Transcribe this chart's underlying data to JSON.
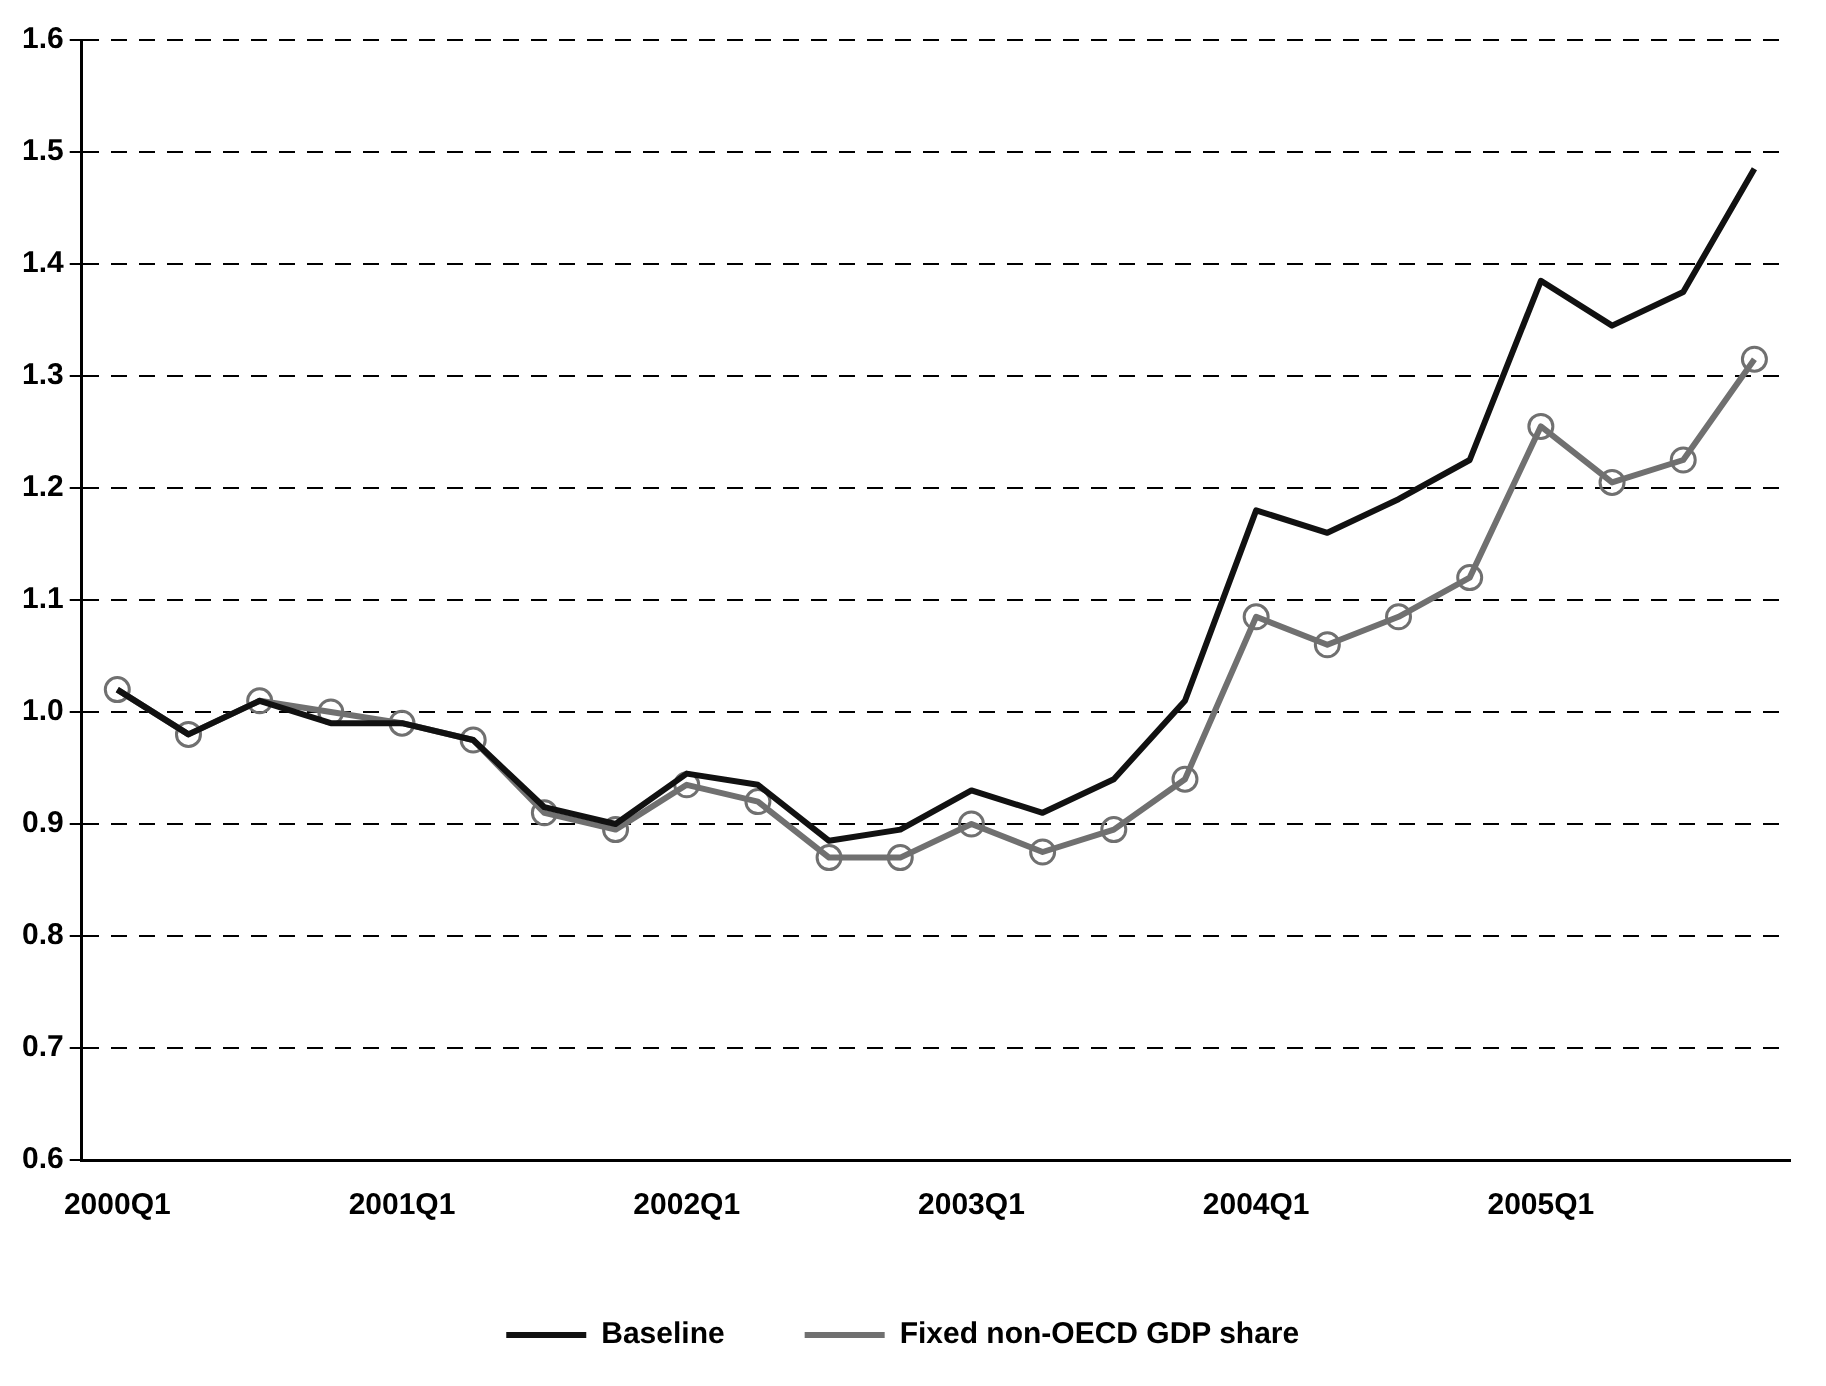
{
  "chart_data": {
    "type": "line",
    "categories": [
      "2000Q1",
      null,
      null,
      null,
      "2001Q1",
      null,
      null,
      null,
      "2002Q1",
      null,
      null,
      null,
      "2003Q1",
      null,
      null,
      null,
      "2004Q1",
      null,
      null,
      null,
      "2005Q1",
      null,
      null,
      null
    ],
    "series": [
      {
        "name": "Baseline",
        "color": "#111111",
        "marker": "none",
        "values": [
          1.02,
          0.98,
          1.01,
          0.99,
          0.99,
          0.975,
          0.915,
          0.9,
          0.945,
          0.935,
          0.885,
          0.895,
          0.93,
          0.91,
          0.94,
          1.01,
          1.18,
          1.16,
          1.19,
          1.225,
          1.385,
          1.345,
          1.375,
          1.485
        ]
      },
      {
        "name": "Fixed non-OECD GDP share",
        "color": "#707070",
        "marker": "circle",
        "values": [
          1.02,
          0.98,
          1.01,
          1.0,
          0.99,
          0.975,
          0.91,
          0.895,
          0.935,
          0.92,
          0.87,
          0.87,
          0.9,
          0.875,
          0.895,
          0.94,
          1.085,
          1.06,
          1.085,
          1.12,
          1.255,
          1.205,
          1.225,
          1.315
        ]
      }
    ],
    "ylim": [
      0.6,
      1.6
    ],
    "yticks": [
      0.6,
      0.7,
      0.8,
      0.9,
      {
        "value": 1,
        "label": "1.0"
      },
      1.1,
      1.2,
      1.3,
      1.4,
      1.5,
      1.6
    ],
    "grid": "y",
    "line_style": "solid",
    "legend": "bottom"
  }
}
